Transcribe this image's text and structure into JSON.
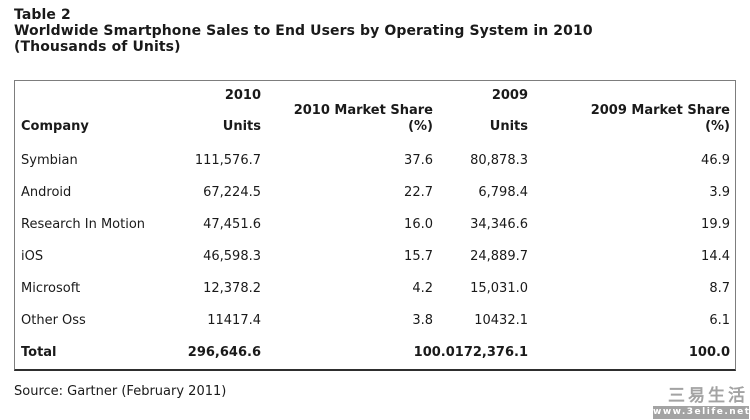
{
  "title": {
    "line1": "Table 2",
    "line2": "Worldwide Smartphone Sales to End Users by Operating System in 2010",
    "line3": "(Thousands of Units)"
  },
  "table": {
    "header": {
      "company": "Company",
      "units2010_year": "2010",
      "units2010_label": "Units",
      "share2010_title": "2010 Market Share",
      "share2010_unit": "(%)",
      "units2009_year": "2009",
      "units2009_label": "Units",
      "share2009_title": "2009 Market Share",
      "share2009_unit": "(%)"
    },
    "rows": [
      {
        "company": "Symbian",
        "units2010": "111,576.7",
        "share2010": "37.6",
        "units2009": "80,878.3",
        "share2009": "46.9"
      },
      {
        "company": "Android",
        "units2010": "67,224.5",
        "share2010": "22.7",
        "units2009": "6,798.4",
        "share2009": "3.9"
      },
      {
        "company": "Research In Motion",
        "units2010": "47,451.6",
        "share2010": "16.0",
        "units2009": "34,346.6",
        "share2009": "19.9"
      },
      {
        "company": "iOS",
        "units2010": "46,598.3",
        "share2010": "15.7",
        "units2009": "24,889.7",
        "share2009": "14.4"
      },
      {
        "company": "Microsoft",
        "units2010": "12,378.2",
        "share2010": "4.2",
        "units2009": "15,031.0",
        "share2009": "8.7"
      },
      {
        "company": "Other Oss",
        "units2010": "11417.4",
        "share2010": "3.8",
        "units2009": "10432.1",
        "share2009": "6.1"
      }
    ],
    "total": {
      "company": "Total",
      "units2010": "296,646.6",
      "share2010": "100.0",
      "units2009": "172,376.1",
      "share2009": "100.0"
    }
  },
  "source": "Source: Gartner (February 2011)",
  "watermark": {
    "text": "三易生活",
    "url": "www.3elife.net"
  },
  "colors": {
    "text": "#1a1a1a",
    "table_border": "#7d7d7d",
    "table_bottom_border": "#2e2e2e",
    "watermark_gray": "#a3a3a3",
    "background": "#ffffff"
  },
  "chart_data": {
    "type": "table",
    "title": "Worldwide Smartphone Sales to End Users by Operating System in 2010 (Thousands of Units)",
    "columns": [
      "Company",
      "2010 Units",
      "2010 Market Share (%)",
      "2009 Units",
      "2009 Market Share (%)"
    ],
    "rows": [
      [
        "Symbian",
        111576.7,
        37.6,
        80878.3,
        46.9
      ],
      [
        "Android",
        67224.5,
        22.7,
        6798.4,
        3.9
      ],
      [
        "Research In Motion",
        47451.6,
        16.0,
        34346.6,
        19.9
      ],
      [
        "iOS",
        46598.3,
        15.7,
        24889.7,
        14.4
      ],
      [
        "Microsoft",
        12378.2,
        4.2,
        15031.0,
        8.7
      ],
      [
        "Other Oss",
        11417.4,
        3.8,
        10432.1,
        6.1
      ],
      [
        "Total",
        296646.6,
        100.0,
        172376.1,
        100.0
      ]
    ]
  }
}
